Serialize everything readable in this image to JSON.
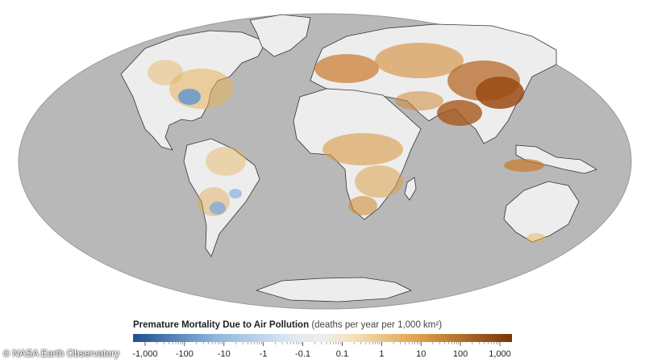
{
  "legend": {
    "title": "Premature Mortality Due to Air Pollution",
    "units": "(deaths per year per 1,000 km²)",
    "tick_labels": [
      "-1,000",
      "-100",
      "-10",
      "-1",
      "-0.1",
      "0.1",
      "1",
      "10",
      "100",
      "1,000"
    ],
    "colors": {
      "strong_negative": "#1f5fa8",
      "neutral": "#e8e8e8",
      "strong_positive": "#8a3b0b"
    }
  },
  "credit": {
    "icon": "copyright-icon",
    "text": "NASA Earth Observatory"
  },
  "map": {
    "ocean_color": "#b8b8b8",
    "land_color": "#ededed",
    "pollution_light": "#e7b35a",
    "pollution_dark": "#9a4a12",
    "reduction_color": "#5b93d3"
  }
}
